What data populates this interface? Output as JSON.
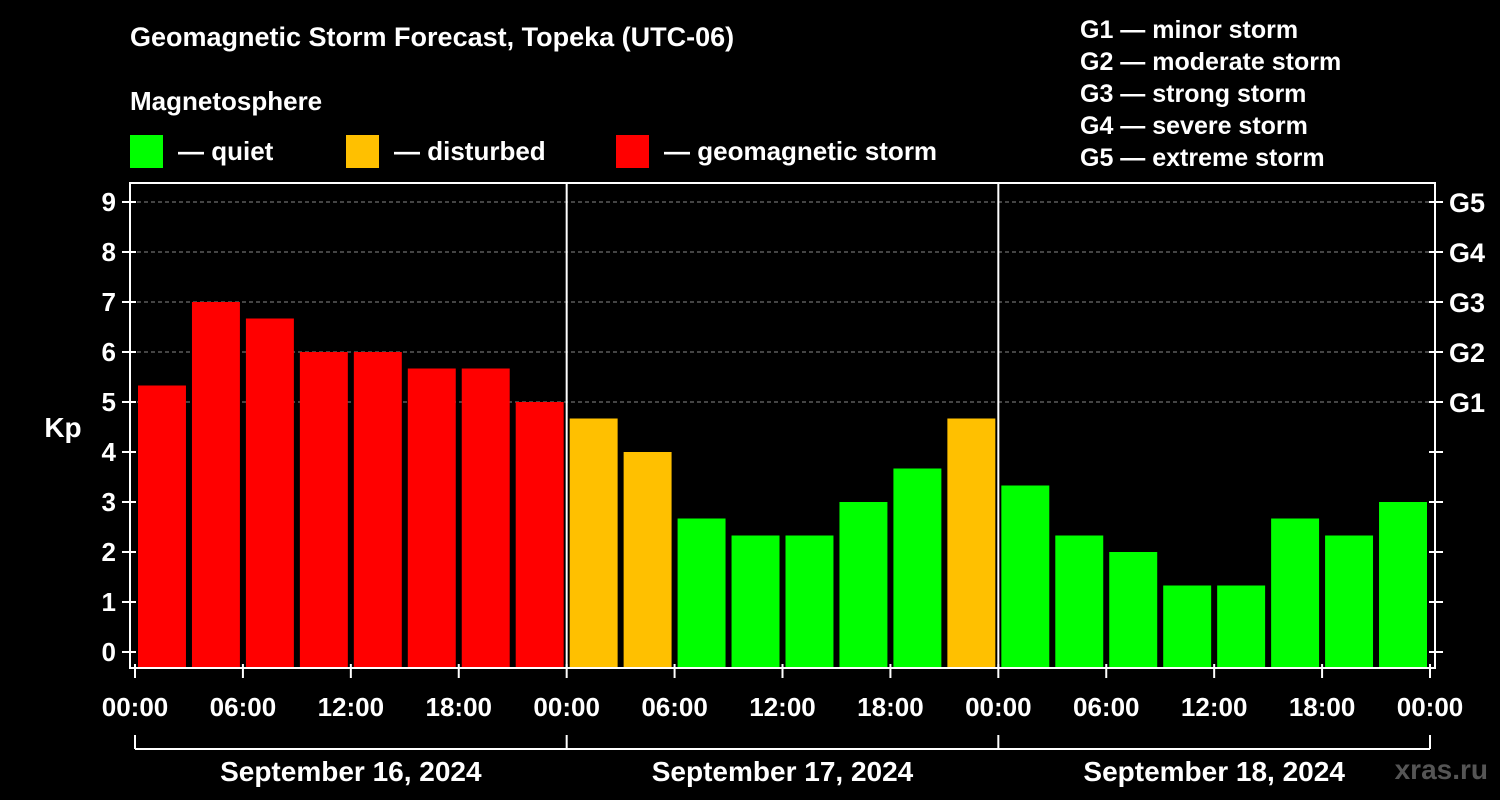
{
  "header": {
    "title": "Geomagnetic Storm Forecast, Topeka (UTC-06)",
    "magnetosphere_label": "Magnetosphere"
  },
  "legend": [
    {
      "label": "— quiet",
      "color": "#00ff00"
    },
    {
      "label": "— disturbed",
      "color": "#ffc000"
    },
    {
      "label": "— geomagnetic storm",
      "color": "#ff0000"
    }
  ],
  "g_scale": [
    "G1 — minor storm",
    "G2 — moderate storm",
    "G3 — strong storm",
    "G4 — severe storm",
    "G5 — extreme storm"
  ],
  "watermark": "xras.ru",
  "chart_data": {
    "type": "bar",
    "ylabel": "Kp",
    "ylim": [
      0,
      9
    ],
    "y_ticks": [
      "0",
      "1",
      "2",
      "3",
      "4",
      "5",
      "6",
      "7",
      "8",
      "9"
    ],
    "right_ticks": [
      {
        "kp": 5,
        "label": "G1"
      },
      {
        "kp": 6,
        "label": "G2"
      },
      {
        "kp": 7,
        "label": "G3"
      },
      {
        "kp": 8,
        "label": "G4"
      },
      {
        "kp": 9,
        "label": "G5"
      }
    ],
    "x_tick_labels": [
      "00:00",
      "06:00",
      "12:00",
      "18:00",
      "00:00",
      "06:00",
      "12:00",
      "18:00",
      "00:00",
      "06:00",
      "12:00",
      "18:00",
      "00:00"
    ],
    "days": [
      "September 16, 2024",
      "September 17, 2024",
      "September 18, 2024"
    ],
    "values": [
      5.33,
      7.0,
      6.67,
      6.0,
      6.0,
      5.67,
      5.67,
      5.0,
      4.67,
      4.0,
      2.67,
      2.33,
      2.33,
      3.0,
      3.67,
      4.67,
      3.33,
      2.33,
      2.0,
      1.33,
      1.33,
      2.67,
      2.33,
      3.0
    ],
    "bar_colors": [
      "#ff0000",
      "#ff0000",
      "#ff0000",
      "#ff0000",
      "#ff0000",
      "#ff0000",
      "#ff0000",
      "#ff0000",
      "#ffc000",
      "#ffc000",
      "#00ff00",
      "#00ff00",
      "#00ff00",
      "#00ff00",
      "#00ff00",
      "#ffc000",
      "#00ff00",
      "#00ff00",
      "#00ff00",
      "#00ff00",
      "#00ff00",
      "#00ff00",
      "#00ff00",
      "#00ff00"
    ],
    "gridlines": "dashed at Kp 5–9",
    "legend_position": "top"
  }
}
